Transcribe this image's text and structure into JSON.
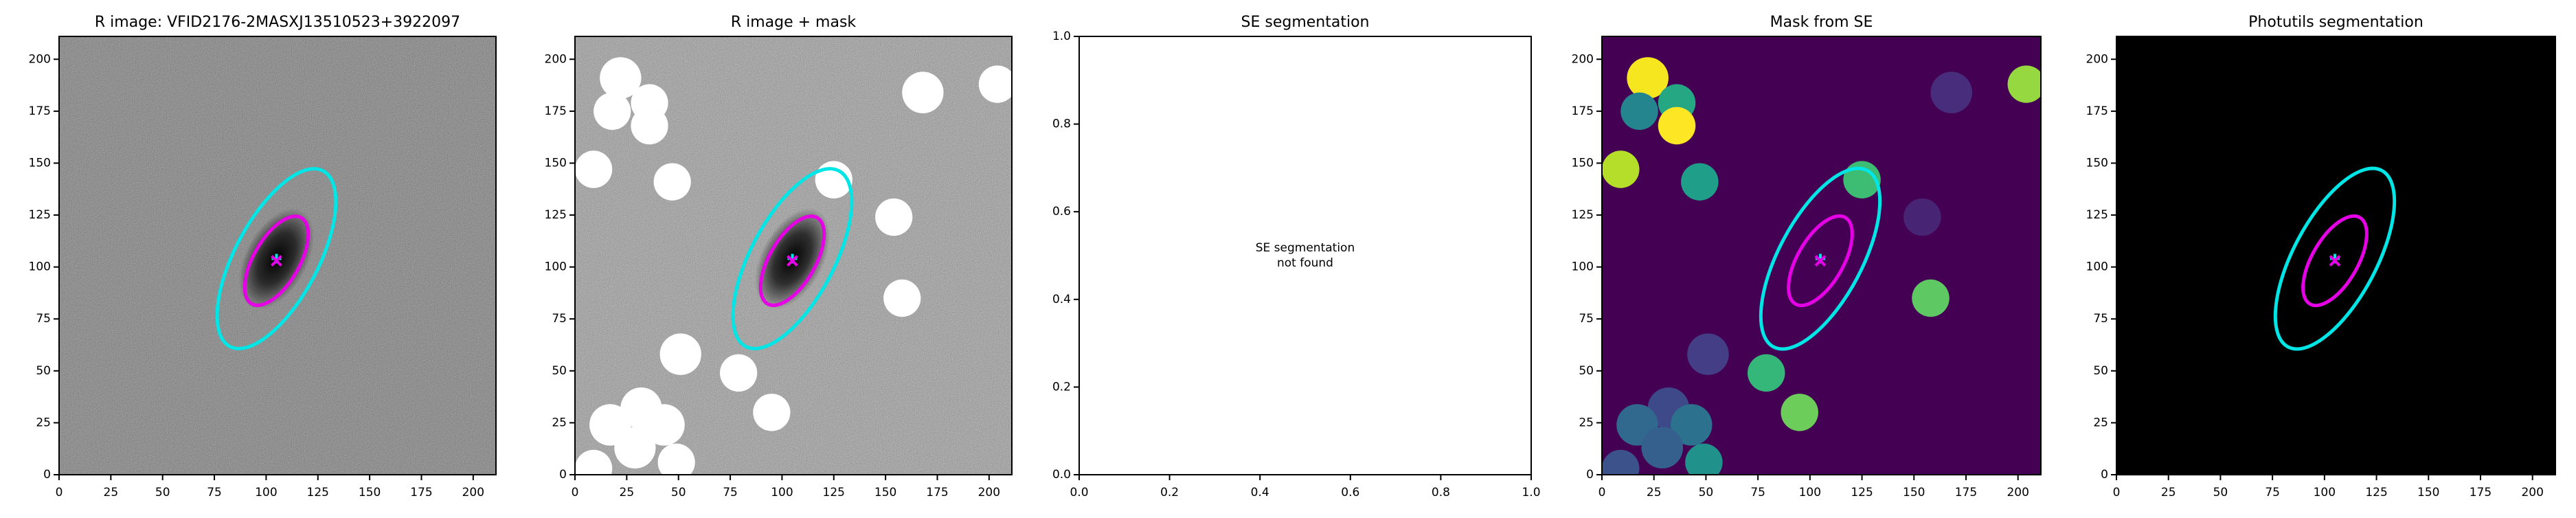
{
  "chart_data": [
    {
      "type": "image",
      "title": "R image: VFID2176-2MASXJ13510523+3922097",
      "xlim": [
        0,
        211
      ],
      "ylim": [
        0,
        211
      ],
      "xticks": [
        0,
        25,
        50,
        75,
        100,
        125,
        150,
        175,
        200
      ],
      "yticks": [
        0,
        25,
        50,
        75,
        100,
        125,
        150,
        175,
        200
      ],
      "background": "#5c5c5c",
      "noise": true,
      "galaxy": true,
      "ellipses": [
        {
          "x": 105,
          "y": 104,
          "a": 48,
          "b": 20,
          "angle": 62,
          "color": "#00e5e5"
        },
        {
          "x": 105,
          "y": 103,
          "a": 24,
          "b": 11,
          "angle": 60,
          "color": "#e500e5"
        }
      ],
      "masks": []
    },
    {
      "type": "image",
      "title": "R image + mask",
      "xlim": [
        0,
        211
      ],
      "ylim": [
        0,
        211
      ],
      "xticks": [
        0,
        25,
        50,
        75,
        100,
        125,
        150,
        175,
        200
      ],
      "yticks": [
        0,
        25,
        50,
        75,
        100,
        125,
        150,
        175,
        200
      ],
      "background": "#8c8c8c",
      "noise": true,
      "galaxy": true,
      "ellipses": [
        {
          "x": 105,
          "y": 104,
          "a": 48,
          "b": 20,
          "angle": 62,
          "color": "#00e5e5"
        },
        {
          "x": 105,
          "y": 103,
          "a": 24,
          "b": 11,
          "angle": 60,
          "color": "#e500e5"
        }
      ],
      "masks": [
        {
          "x": 22,
          "y": 191,
          "r": 10,
          "color": "#ffffff"
        },
        {
          "x": 36,
          "y": 179,
          "r": 9,
          "color": "#ffffff"
        },
        {
          "x": 18,
          "y": 175,
          "r": 9,
          "color": "#ffffff"
        },
        {
          "x": 36,
          "y": 168,
          "r": 9,
          "color": "#ffffff"
        },
        {
          "x": 168,
          "y": 184,
          "r": 10,
          "color": "#ffffff"
        },
        {
          "x": 204,
          "y": 188,
          "r": 9,
          "color": "#ffffff"
        },
        {
          "x": 9,
          "y": 147,
          "r": 9,
          "color": "#ffffff"
        },
        {
          "x": 47,
          "y": 141,
          "r": 9,
          "color": "#ffffff"
        },
        {
          "x": 125,
          "y": 142,
          "r": 9,
          "color": "#ffffff"
        },
        {
          "x": 154,
          "y": 124,
          "r": 9,
          "color": "#ffffff"
        },
        {
          "x": 158,
          "y": 85,
          "r": 9,
          "color": "#ffffff"
        },
        {
          "x": 51,
          "y": 58,
          "r": 10,
          "color": "#ffffff"
        },
        {
          "x": 79,
          "y": 49,
          "r": 9,
          "color": "#ffffff"
        },
        {
          "x": 95,
          "y": 30,
          "r": 9,
          "color": "#ffffff"
        },
        {
          "x": 32,
          "y": 32,
          "r": 10,
          "color": "#ffffff"
        },
        {
          "x": 17,
          "y": 24,
          "r": 10,
          "color": "#ffffff"
        },
        {
          "x": 43,
          "y": 24,
          "r": 10,
          "color": "#ffffff"
        },
        {
          "x": 49,
          "y": 6,
          "r": 9,
          "color": "#ffffff"
        },
        {
          "x": 29,
          "y": 13,
          "r": 10,
          "color": "#ffffff"
        },
        {
          "x": 9,
          "y": 3,
          "r": 9,
          "color": "#ffffff"
        }
      ]
    },
    {
      "type": "empty",
      "title": "SE segmentation",
      "xlim": [
        0,
        1
      ],
      "ylim": [
        0,
        1
      ],
      "xticks": [
        {
          "value": 0,
          "label": "0.0"
        },
        {
          "value": 0.2,
          "label": "0.2"
        },
        {
          "value": 0.4,
          "label": "0.4"
        },
        {
          "value": 0.6,
          "label": "0.6"
        },
        {
          "value": 0.8,
          "label": "0.8"
        },
        {
          "value": 1,
          "label": "1.0"
        }
      ],
      "yticks": [
        {
          "value": 0,
          "label": "0.0"
        },
        {
          "value": 0.2,
          "label": "0.2"
        },
        {
          "value": 0.4,
          "label": "0.4"
        },
        {
          "value": 0.6,
          "label": "0.6"
        },
        {
          "value": 0.8,
          "label": "0.8"
        },
        {
          "value": 1,
          "label": "1.0"
        }
      ],
      "annotation": {
        "x": 0.5,
        "y": 0.5,
        "lines": [
          "SE segmentation",
          "not found"
        ]
      }
    },
    {
      "type": "image",
      "title": "Mask from SE",
      "xlim": [
        0,
        211
      ],
      "ylim": [
        0,
        211
      ],
      "xticks": [
        0,
        25,
        50,
        75,
        100,
        125,
        150,
        175,
        200
      ],
      "yticks": [
        0,
        25,
        50,
        75,
        100,
        125,
        150,
        175,
        200
      ],
      "background": "#440154",
      "noise": false,
      "galaxy": false,
      "ellipses": [
        {
          "x": 105,
          "y": 104,
          "a": 48,
          "b": 20,
          "angle": 62,
          "color": "#00e5e5"
        },
        {
          "x": 105,
          "y": 103,
          "a": 24,
          "b": 11,
          "angle": 60,
          "color": "#e500e5"
        }
      ],
      "masks": [
        {
          "x": 22,
          "y": 191,
          "r": 10,
          "color": "#f5e61f"
        },
        {
          "x": 36,
          "y": 179,
          "r": 9,
          "color": "#26a784"
        },
        {
          "x": 18,
          "y": 175,
          "r": 9,
          "color": "#25858e"
        },
        {
          "x": 36,
          "y": 168,
          "r": 9,
          "color": "#fde725"
        },
        {
          "x": 168,
          "y": 184,
          "r": 10,
          "color": "#472d7b"
        },
        {
          "x": 204,
          "y": 188,
          "r": 9,
          "color": "#95d840"
        },
        {
          "x": 9,
          "y": 147,
          "r": 9,
          "color": "#b5de2b"
        },
        {
          "x": 47,
          "y": 141,
          "r": 9,
          "color": "#1f9e89"
        },
        {
          "x": 125,
          "y": 142,
          "r": 9,
          "color": "#3dbc74"
        },
        {
          "x": 154,
          "y": 124,
          "r": 9,
          "color": "#482475"
        },
        {
          "x": 158,
          "y": 85,
          "r": 9,
          "color": "#5ec962"
        },
        {
          "x": 51,
          "y": 58,
          "r": 10,
          "color": "#433e85"
        },
        {
          "x": 79,
          "y": 49,
          "r": 9,
          "color": "#35b779"
        },
        {
          "x": 95,
          "y": 30,
          "r": 9,
          "color": "#6ccd5a"
        },
        {
          "x": 32,
          "y": 32,
          "r": 10,
          "color": "#3e4989"
        },
        {
          "x": 17,
          "y": 24,
          "r": 10,
          "color": "#31688e"
        },
        {
          "x": 43,
          "y": 24,
          "r": 10,
          "color": "#2c728e"
        },
        {
          "x": 49,
          "y": 6,
          "r": 9,
          "color": "#21918c"
        },
        {
          "x": 29,
          "y": 13,
          "r": 10,
          "color": "#355f8d"
        },
        {
          "x": 9,
          "y": 3,
          "r": 9,
          "color": "#3b528b"
        }
      ]
    },
    {
      "type": "image",
      "title": "Photutils segmentation",
      "xlim": [
        0,
        211
      ],
      "ylim": [
        0,
        211
      ],
      "xticks": [
        0,
        25,
        50,
        75,
        100,
        125,
        150,
        175,
        200
      ],
      "yticks": [
        0,
        25,
        50,
        75,
        100,
        125,
        150,
        175,
        200
      ],
      "background": "#000000",
      "noise": false,
      "galaxy": false,
      "ellipses": [
        {
          "x": 105,
          "y": 104,
          "a": 48,
          "b": 20,
          "angle": 62,
          "color": "#00e5e5"
        },
        {
          "x": 105,
          "y": 103,
          "a": 24,
          "b": 11,
          "angle": 60,
          "color": "#e500e5"
        }
      ],
      "masks": []
    }
  ]
}
